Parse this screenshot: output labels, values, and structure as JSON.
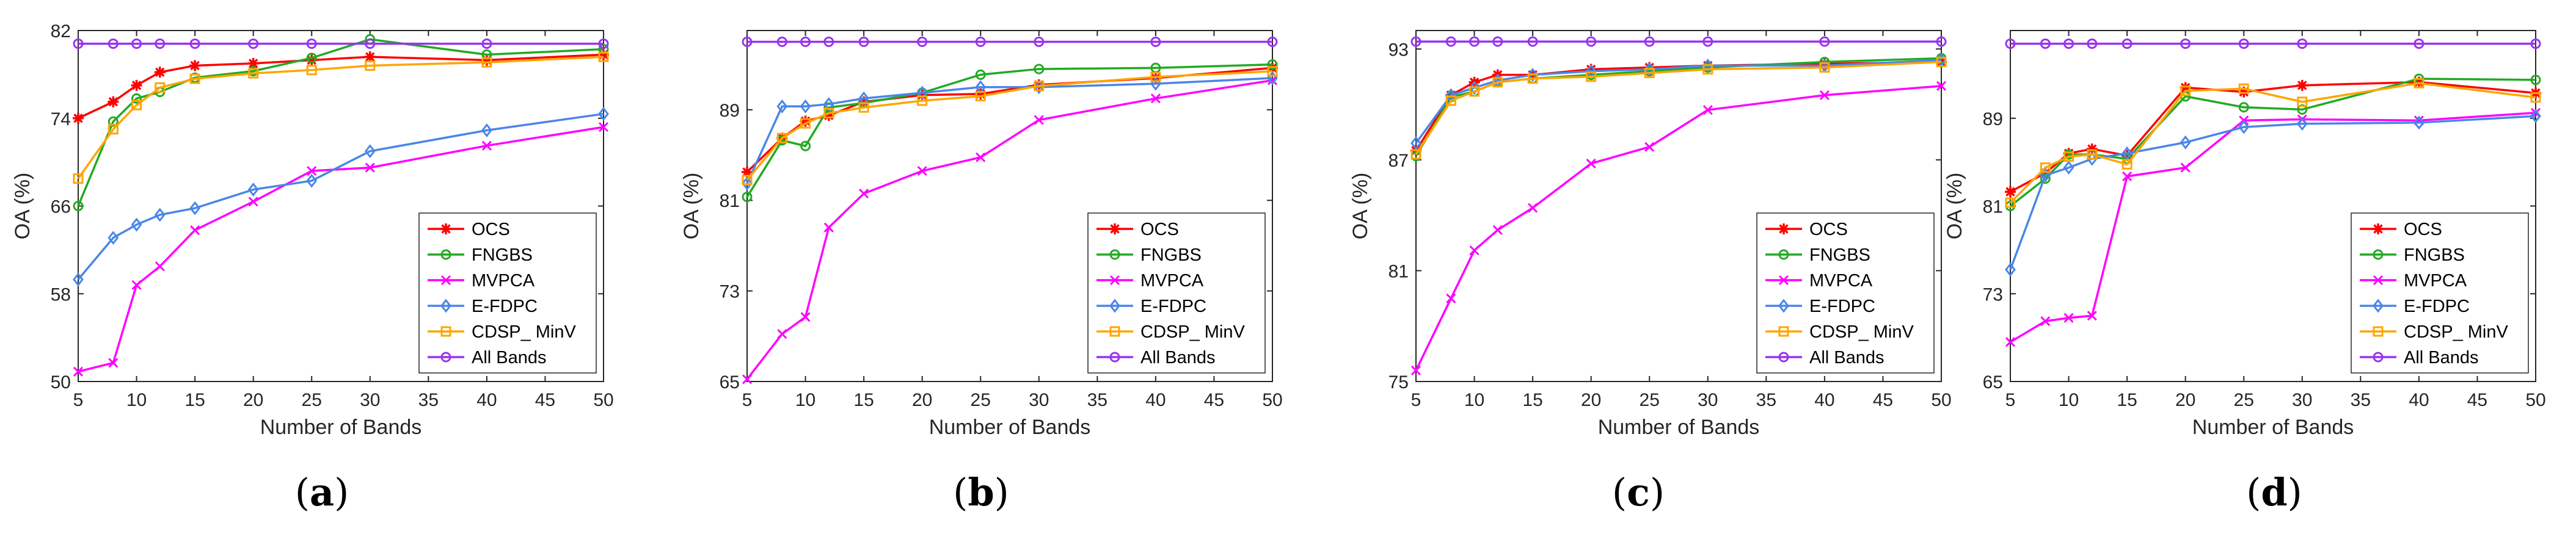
{
  "chart_data": [
    {
      "type": "line",
      "caption_letter": "a",
      "xlabel": "Number of Bands",
      "ylabel": "OA (%)",
      "x": [
        5,
        8,
        10,
        12,
        15,
        20,
        25,
        30,
        40,
        50
      ],
      "xticks": [
        5,
        10,
        15,
        20,
        25,
        30,
        35,
        40,
        45,
        50
      ],
      "xlim": [
        5,
        50
      ],
      "yticks": [
        50,
        58,
        66,
        74,
        82
      ],
      "ylim": [
        50,
        82
      ],
      "legend": "bottom-right",
      "series": [
        {
          "name": "OCS",
          "color": "#ff0000",
          "marker": "star",
          "values": [
            74.0,
            75.5,
            77.0,
            78.2,
            78.8,
            79.0,
            79.3,
            79.6,
            79.3,
            79.8
          ]
        },
        {
          "name": "FNGBS",
          "color": "#22aa22",
          "marker": "circle",
          "values": [
            66.0,
            73.7,
            75.8,
            76.4,
            77.7,
            78.3,
            79.5,
            81.2,
            79.8,
            80.3
          ]
        },
        {
          "name": "MVPCA",
          "color": "#ff00ff",
          "marker": "x",
          "values": [
            50.9,
            51.7,
            58.8,
            60.5,
            63.8,
            66.4,
            69.2,
            69.5,
            71.5,
            73.2
          ]
        },
        {
          "name": "E-FDPC",
          "color": "#4a86e8",
          "marker": "diamond",
          "values": [
            59.3,
            63.1,
            64.3,
            65.2,
            65.8,
            67.5,
            68.3,
            71.0,
            72.9,
            74.4
          ]
        },
        {
          "name": "CDSP_ MinV",
          "color": "#ffa500",
          "marker": "square",
          "values": [
            68.5,
            73.0,
            75.2,
            76.8,
            77.6,
            78.1,
            78.4,
            78.8,
            79.1,
            79.6
          ]
        },
        {
          "name": "All Bands",
          "color": "#9933ee",
          "marker": "circle",
          "values": [
            80.8,
            80.8,
            80.8,
            80.8,
            80.8,
            80.8,
            80.8,
            80.8,
            80.8,
            80.8
          ]
        }
      ]
    },
    {
      "type": "line",
      "caption_letter": "b",
      "xlabel": "Number of Bands",
      "ylabel": "OA (%)",
      "x": [
        5,
        8,
        10,
        12,
        15,
        20,
        25,
        30,
        40,
        50
      ],
      "xticks": [
        5,
        10,
        15,
        20,
        25,
        30,
        35,
        40,
        45,
        50
      ],
      "xlim": [
        5,
        50
      ],
      "yticks": [
        65,
        73,
        81,
        89
      ],
      "ylim": [
        65,
        96
      ],
      "legend": "bottom-right",
      "series": [
        {
          "name": "OCS",
          "color": "#ff0000",
          "marker": "star",
          "values": [
            83.5,
            86.5,
            88.0,
            88.5,
            89.7,
            90.3,
            90.4,
            91.2,
            91.8,
            92.7
          ]
        },
        {
          "name": "FNGBS",
          "color": "#22aa22",
          "marker": "circle",
          "values": [
            81.3,
            86.3,
            85.8,
            89.2,
            89.6,
            90.5,
            92.1,
            92.6,
            92.7,
            93.0
          ]
        },
        {
          "name": "MVPCA",
          "color": "#ff00ff",
          "marker": "x",
          "values": [
            65.2,
            69.2,
            70.7,
            78.6,
            81.6,
            83.6,
            84.8,
            88.1,
            90.0,
            91.6
          ]
        },
        {
          "name": "E-FDPC",
          "color": "#4a86e8",
          "marker": "diamond",
          "values": [
            82.5,
            89.3,
            89.3,
            89.5,
            90.0,
            90.5,
            91.0,
            91.0,
            91.3,
            91.8
          ]
        },
        {
          "name": "CDSP_ MinV",
          "color": "#ffa500",
          "marker": "square",
          "values": [
            82.8,
            86.5,
            87.8,
            88.7,
            89.2,
            89.8,
            90.2,
            91.1,
            91.9,
            92.4
          ]
        },
        {
          "name": "All Bands",
          "color": "#9933ee",
          "marker": "circle",
          "values": [
            95.0,
            95.0,
            95.0,
            95.0,
            95.0,
            95.0,
            95.0,
            95.0,
            95.0,
            95.0
          ]
        }
      ]
    },
    {
      "type": "line",
      "caption_letter": "c",
      "xlabel": "Number of Bands",
      "ylabel": "OA (%)",
      "x": [
        5,
        8,
        10,
        12,
        15,
        20,
        25,
        30,
        40,
        50
      ],
      "xticks": [
        5,
        10,
        15,
        20,
        25,
        30,
        35,
        40,
        45,
        50
      ],
      "xlim": [
        5,
        50
      ],
      "yticks": [
        75,
        81,
        87,
        93
      ],
      "ylim": [
        75,
        94
      ],
      "legend": "bottom-right",
      "series": [
        {
          "name": "OCS",
          "color": "#ff0000",
          "marker": "star",
          "values": [
            87.5,
            90.5,
            91.2,
            91.6,
            91.6,
            91.9,
            92.0,
            92.1,
            92.2,
            92.3
          ]
        },
        {
          "name": "FNGBS",
          "color": "#22aa22",
          "marker": "circle",
          "values": [
            87.2,
            90.4,
            90.7,
            91.2,
            91.4,
            91.6,
            91.8,
            92.0,
            92.3,
            92.5
          ]
        },
        {
          "name": "MVPCA",
          "color": "#ff00ff",
          "marker": "x",
          "values": [
            75.6,
            79.5,
            82.1,
            83.2,
            84.4,
            86.8,
            87.7,
            89.7,
            90.5,
            91.0
          ]
        },
        {
          "name": "E-FDPC",
          "color": "#4a86e8",
          "marker": "diamond",
          "values": [
            87.9,
            90.5,
            90.9,
            91.3,
            91.6,
            91.8,
            91.9,
            92.1,
            92.1,
            92.4
          ]
        },
        {
          "name": "CDSP_ MinV",
          "color": "#ffa500",
          "marker": "square",
          "values": [
            87.3,
            90.2,
            90.7,
            91.2,
            91.4,
            91.5,
            91.7,
            91.9,
            92.0,
            92.3
          ]
        },
        {
          "name": "All Bands",
          "color": "#9933ee",
          "marker": "circle",
          "values": [
            93.4,
            93.4,
            93.4,
            93.4,
            93.4,
            93.4,
            93.4,
            93.4,
            93.4,
            93.4
          ]
        }
      ]
    },
    {
      "type": "line",
      "caption_letter": "d",
      "xlabel": "Number of Bands",
      "ylabel": "OA (%)",
      "x": [
        5,
        8,
        10,
        12,
        15,
        20,
        25,
        30,
        40,
        50
      ],
      "xticks": [
        5,
        10,
        15,
        20,
        25,
        30,
        35,
        40,
        45,
        50
      ],
      "xlim": [
        5,
        50
      ],
      "yticks": [
        65,
        73,
        81,
        89
      ],
      "ylim": [
        65,
        97
      ],
      "legend": "bottom-right",
      "series": [
        {
          "name": "OCS",
          "color": "#ff0000",
          "marker": "star",
          "values": [
            82.3,
            84.0,
            85.8,
            86.2,
            85.6,
            91.8,
            91.4,
            92.0,
            92.3,
            91.3
          ]
        },
        {
          "name": "FNGBS",
          "color": "#22aa22",
          "marker": "circle",
          "values": [
            81.0,
            83.5,
            85.7,
            85.7,
            85.3,
            91.0,
            90.0,
            89.8,
            92.6,
            92.5
          ]
        },
        {
          "name": "MVPCA",
          "color": "#ff00ff",
          "marker": "x",
          "values": [
            68.6,
            70.5,
            70.8,
            71.0,
            83.7,
            84.5,
            88.8,
            88.9,
            88.8,
            89.5
          ]
        },
        {
          "name": "E-FDPC",
          "color": "#4a86e8",
          "marker": "diamond",
          "values": [
            75.2,
            83.8,
            84.5,
            85.3,
            85.8,
            86.8,
            88.2,
            88.5,
            88.6,
            89.2
          ]
        },
        {
          "name": "CDSP_ MinV",
          "color": "#ffa500",
          "marker": "square",
          "values": [
            81.3,
            84.5,
            85.5,
            85.7,
            84.8,
            91.5,
            91.7,
            90.5,
            92.2,
            90.9
          ]
        },
        {
          "name": "All Bands",
          "color": "#9933ee",
          "marker": "circle",
          "values": [
            95.8,
            95.8,
            95.8,
            95.8,
            95.8,
            95.8,
            95.8,
            95.8,
            95.8,
            95.8
          ]
        }
      ]
    }
  ]
}
